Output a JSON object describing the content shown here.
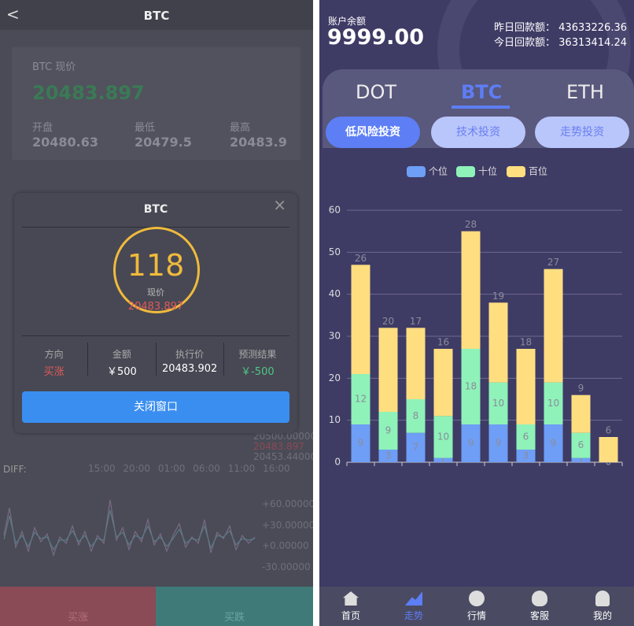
{
  "left": {
    "header_title": "BTC",
    "price_label": "BTC 现价",
    "price": "20483.897",
    "open_label": "开盘",
    "open": "20480.63",
    "low_label": "最低",
    "low": "20479.5",
    "high_label": "最高",
    "high": "20483.9",
    "axis_labels": [
      "20500.00000",
      "20483.897",
      "20453.44000"
    ],
    "diff_label": "DIFF:",
    "times": [
      "15:00",
      "20:00",
      "01:00",
      "06:00",
      "11:00",
      "16:00"
    ],
    "macd_ticks": [
      "+60.00000",
      "+30.00000",
      "+0.00000",
      "-30.00000"
    ],
    "buy_up": "买涨",
    "buy_down": "买跌",
    "popup": {
      "title": "BTC",
      "count": "118",
      "count_label": "现价",
      "price": "20483.897",
      "columns": [
        {
          "label": "方向",
          "value": "买涨"
        },
        {
          "label": "金额",
          "value": "￥500"
        },
        {
          "label": "执行价",
          "value": "20483.902"
        },
        {
          "label": "预测结果",
          "value": "￥-500"
        }
      ],
      "close": "关闭窗口"
    }
  },
  "right": {
    "balance_label": "账户余额",
    "balance": "9999.00",
    "yesterday_label": "昨日回款额：",
    "yesterday": "43633226.36",
    "today_label": "今日回款额：",
    "today": "36313414.24",
    "tabs": [
      "DOT",
      "BTC",
      "ETH"
    ],
    "buttons": [
      "低风险投资",
      "技术投资",
      "走势投资"
    ],
    "nav": [
      "首页",
      "走势",
      "行情",
      "客服",
      "我的"
    ]
  },
  "chart_data": {
    "type": "stacked-bar",
    "categories": [
      null,
      null,
      null,
      null,
      null,
      null,
      null,
      null,
      null,
      null
    ],
    "series": [
      {
        "name": "个位",
        "color": "#6e9ef5",
        "values": [
          9,
          3,
          7,
          1,
          9,
          9,
          3,
          9,
          1,
          0
        ]
      },
      {
        "name": "十位",
        "color": "#8ef2b9",
        "values": [
          12,
          9,
          8,
          10,
          18,
          10,
          6,
          10,
          6,
          0
        ]
      },
      {
        "name": "百位",
        "color": "#ffde80",
        "values": [
          26,
          20,
          17,
          16,
          28,
          19,
          18,
          27,
          9,
          6
        ]
      }
    ],
    "ylim": [
      0,
      60
    ],
    "yticks": [
      0,
      10,
      20,
      30,
      40,
      50,
      60
    ],
    "grid": true,
    "legend": "top"
  }
}
